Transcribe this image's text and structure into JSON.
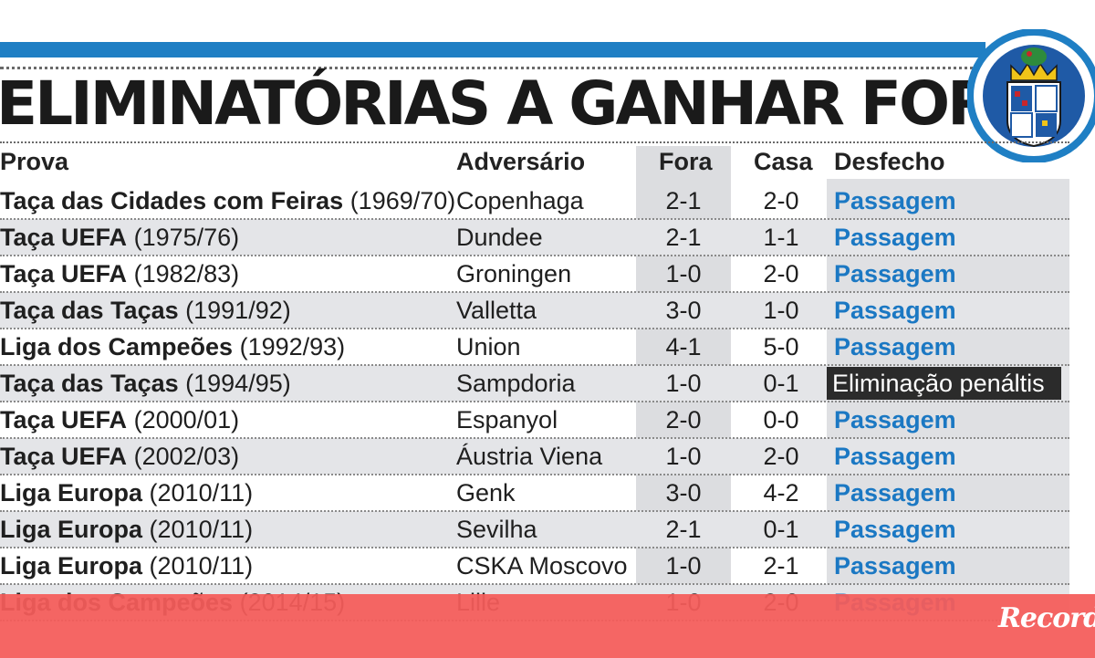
{
  "title": "ELIMINATÓRIAS A GANHAR FORA",
  "headers": {
    "prova": "Prova",
    "adversario": "Adversário",
    "fora": "Fora",
    "casa": "Casa",
    "desfecho": "Desfecho"
  },
  "rows": [
    {
      "comp": "Taça das Cidades com Feiras",
      "season": "(1969/70)",
      "opponent": "Copenhaga",
      "fora": "2-1",
      "casa": "2-0",
      "outcome": "Passagem"
    },
    {
      "comp": "Taça UEFA",
      "season": "(1975/76)",
      "opponent": "Dundee",
      "fora": "2-1",
      "casa": "1-1",
      "outcome": "Passagem"
    },
    {
      "comp": "Taça UEFA",
      "season": "(1982/83)",
      "opponent": "Groningen",
      "fora": "1-0",
      "casa": "2-0",
      "outcome": "Passagem"
    },
    {
      "comp": "Taça das Taças",
      "season": "(1991/92)",
      "opponent": "Valletta",
      "fora": "3-0",
      "casa": "1-0",
      "outcome": "Passagem"
    },
    {
      "comp": "Liga dos Campeões",
      "season": "(1992/93)",
      "opponent": "Union",
      "fora": "4-1",
      "casa": "5-0",
      "outcome": "Passagem"
    },
    {
      "comp": "Taça das Taças",
      "season": "(1994/95)",
      "opponent": "Sampdoria",
      "fora": "1-0",
      "casa": "0-1",
      "outcome": "Eliminação penáltis"
    },
    {
      "comp": "Taça UEFA",
      "season": "(2000/01)",
      "opponent": "Espanyol",
      "fora": "2-0",
      "casa": "0-0",
      "outcome": "Passagem"
    },
    {
      "comp": "Taça UEFA",
      "season": "(2002/03)",
      "opponent": "Áustria Viena",
      "fora": "1-0",
      "casa": "2-0",
      "outcome": "Passagem"
    },
    {
      "comp": "Liga Europa",
      "season": "(2010/11)",
      "opponent": "Genk",
      "fora": "3-0",
      "casa": "4-2",
      "outcome": "Passagem"
    },
    {
      "comp": "Liga Europa",
      "season": "(2010/11)",
      "opponent": "Sevilha",
      "fora": "2-1",
      "casa": "0-1",
      "outcome": "Passagem"
    },
    {
      "comp": "Liga Europa",
      "season": "(2010/11)",
      "opponent": "CSKA Moscovo",
      "fora": "1-0",
      "casa": "2-1",
      "outcome": "Passagem"
    },
    {
      "comp": "Liga dos Campeões",
      "season": "(2014/15)",
      "opponent": "Lille",
      "fora": "1-0",
      "casa": "2-0",
      "outcome": "Passagem"
    }
  ],
  "branding": {
    "logo_text": "Record"
  },
  "colors": {
    "accent_blue": "#1f7fc4",
    "outcome_blue": "#1b78c3",
    "footer_red": "#f45c5a",
    "dark_cell": "#2b2b2b"
  },
  "icons": {
    "crest": "club-crest-icon"
  }
}
